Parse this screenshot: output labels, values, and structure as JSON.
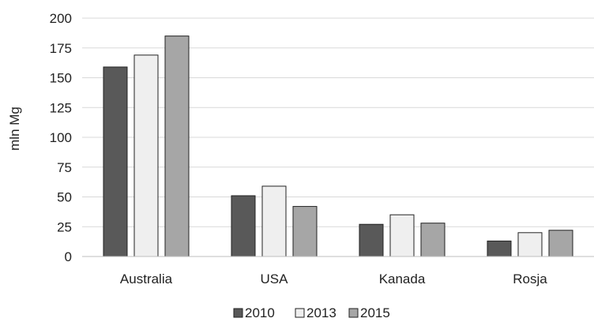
{
  "chart_data": {
    "type": "bar",
    "title": "",
    "xlabel": "",
    "ylabel": "mln Mg",
    "ylim": [
      0,
      200
    ],
    "yticks": [
      0,
      25,
      50,
      75,
      100,
      125,
      150,
      175,
      200
    ],
    "grid": true,
    "legend_position": "bottom",
    "categories": [
      "Australia",
      "USA",
      "Kanada",
      "Rosja"
    ],
    "series": [
      {
        "name": "2010",
        "color": "#595959",
        "values": [
          159,
          51,
          27,
          13
        ]
      },
      {
        "name": "2013",
        "color": "#efefef",
        "values": [
          169,
          59,
          35,
          20
        ]
      },
      {
        "name": "2015",
        "color": "#a6a6a6",
        "values": [
          185,
          42,
          28,
          22
        ]
      }
    ]
  }
}
